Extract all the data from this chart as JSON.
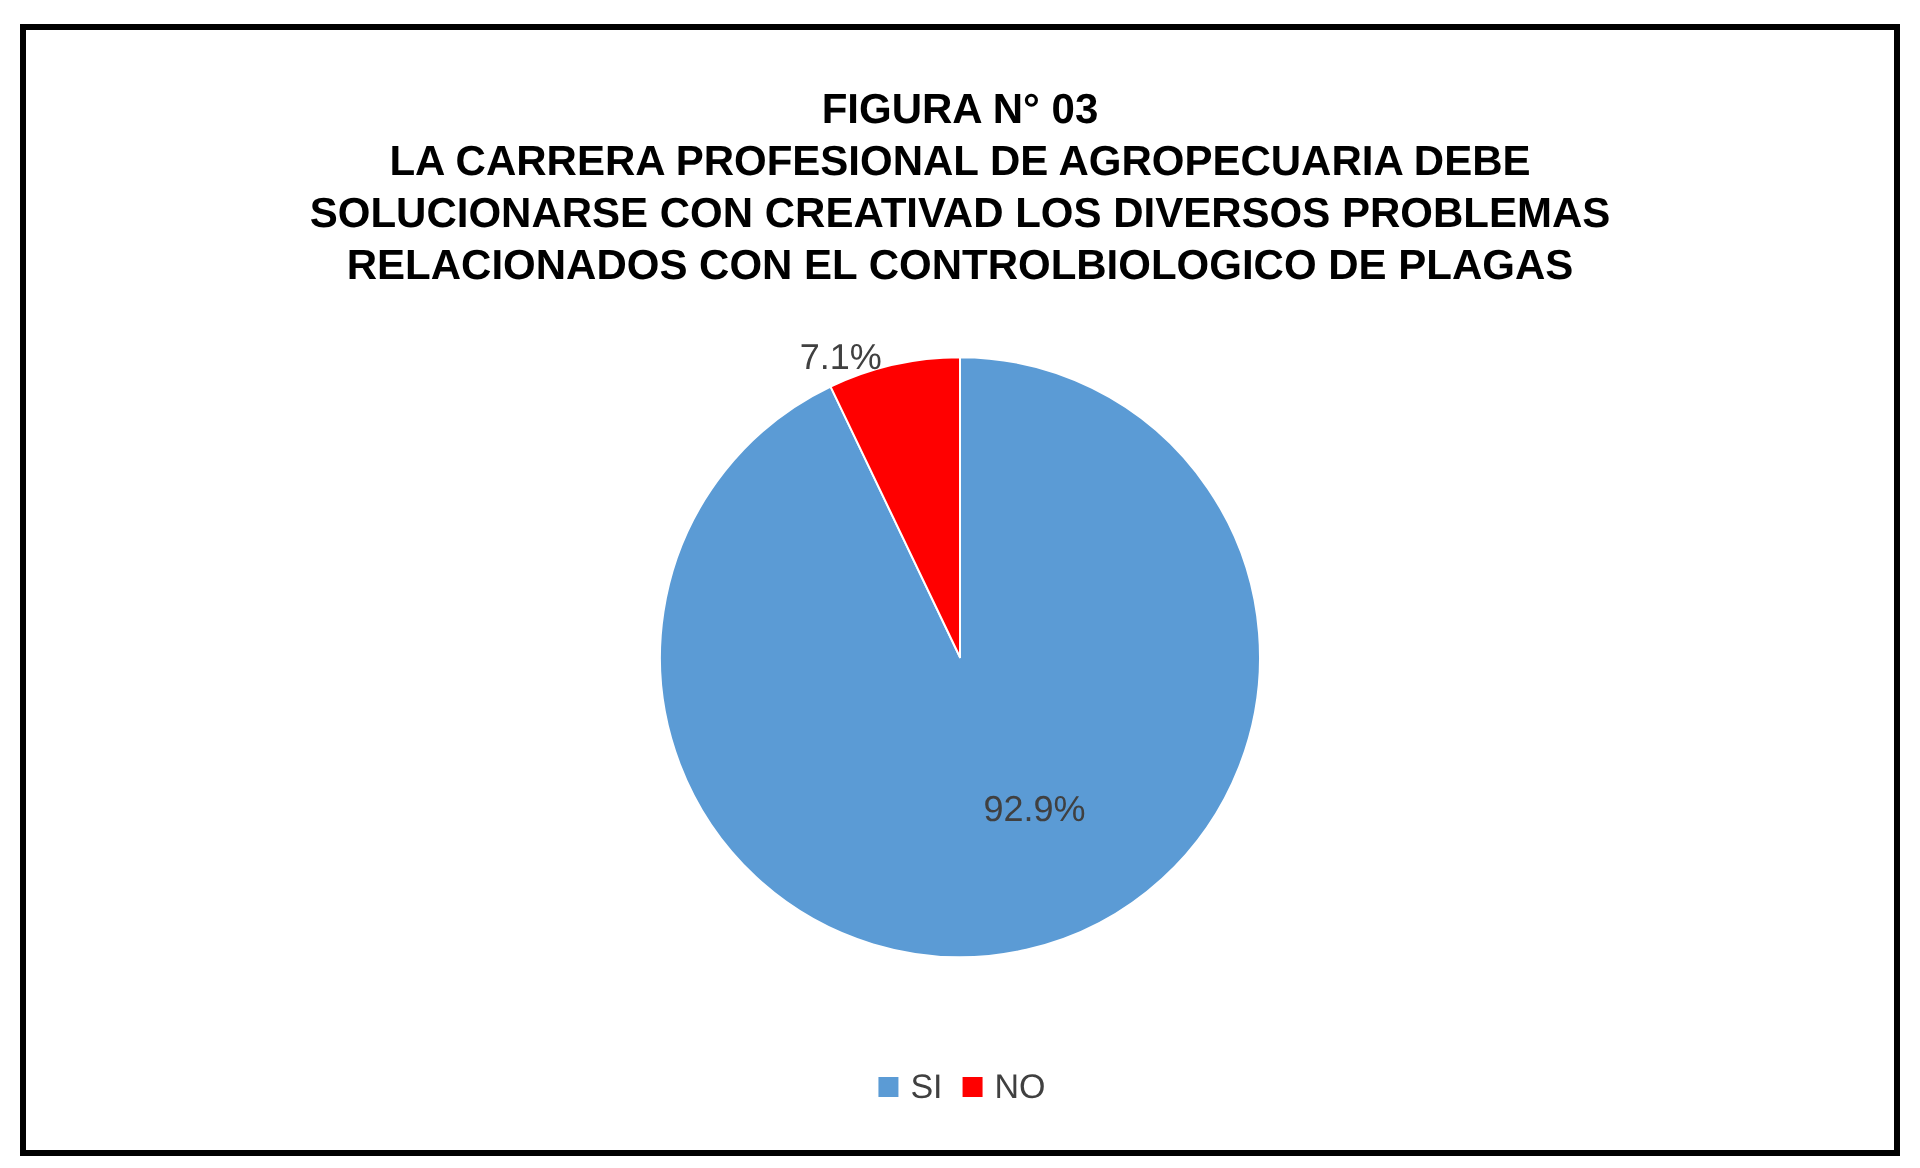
{
  "chart_data": {
    "type": "pie",
    "title": "FIGURA N° 03\nLA CARRERA PROFESIONAL DE AGROPECUARIA DEBE\nSOLUCIONARSE CON CREATIVAD LOS DIVERSOS PROBLEMAS\nRELACIONADOS CON EL CONTROLBIOLOGICO DE PLAGAS",
    "categories": [
      "SI",
      "NO"
    ],
    "values": [
      92.9,
      7.1
    ],
    "value_labels": [
      "92.9%",
      "7.1%"
    ],
    "colors": [
      "#5b9bd5",
      "#ff0000"
    ],
    "legend": "bottom"
  }
}
